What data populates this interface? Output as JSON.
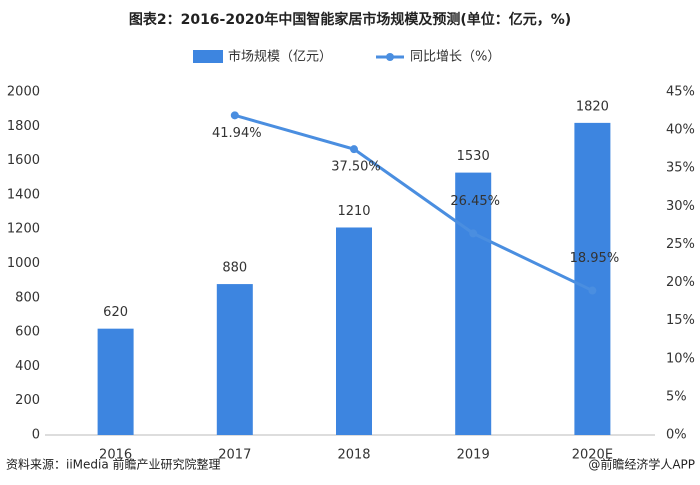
{
  "chart_data": {
    "type": "bar_line",
    "title": "图表2：2016-2020年中国智能家居市场规模及预测(单位：亿元，%)",
    "categories": [
      "2016",
      "2017",
      "2018",
      "2019",
      "2020E"
    ],
    "series": [
      {
        "name": "市场规模（亿元）",
        "type": "bar",
        "color": "#3d85e0",
        "values": [
          620,
          880,
          1210,
          1530,
          1820
        ]
      },
      {
        "name": "同比增长（%）",
        "type": "line",
        "axis": "y2",
        "color": "#4a8ee0",
        "values": [
          null,
          41.94,
          37.5,
          26.45,
          18.95
        ],
        "value_labels": [
          null,
          "41.94%",
          "37.50%",
          "26.45%",
          "18.95%"
        ]
      }
    ],
    "ylim": [
      0,
      2000
    ],
    "yticks": [
      0,
      200,
      400,
      600,
      800,
      1000,
      1200,
      1400,
      1600,
      1800,
      2000
    ],
    "y2lim": [
      0,
      45
    ],
    "y2ticks": [
      {
        "value": 0,
        "label": "0%"
      },
      {
        "value": 5,
        "label": "5%"
      },
      {
        "value": 10,
        "label": "10%"
      },
      {
        "value": 15,
        "label": "15%"
      },
      {
        "value": 20,
        "label": "20%"
      },
      {
        "value": 25,
        "label": "25%"
      },
      {
        "value": 30,
        "label": "30%"
      },
      {
        "value": 35,
        "label": "35%"
      },
      {
        "value": 40,
        "label": "40%"
      },
      {
        "value": 45,
        "label": "45%"
      }
    ],
    "grid": false,
    "legend": "top",
    "source": "资料来源：iiMedia 前瞻产业研究院整理",
    "credit": "@前瞻经济学人APP"
  }
}
